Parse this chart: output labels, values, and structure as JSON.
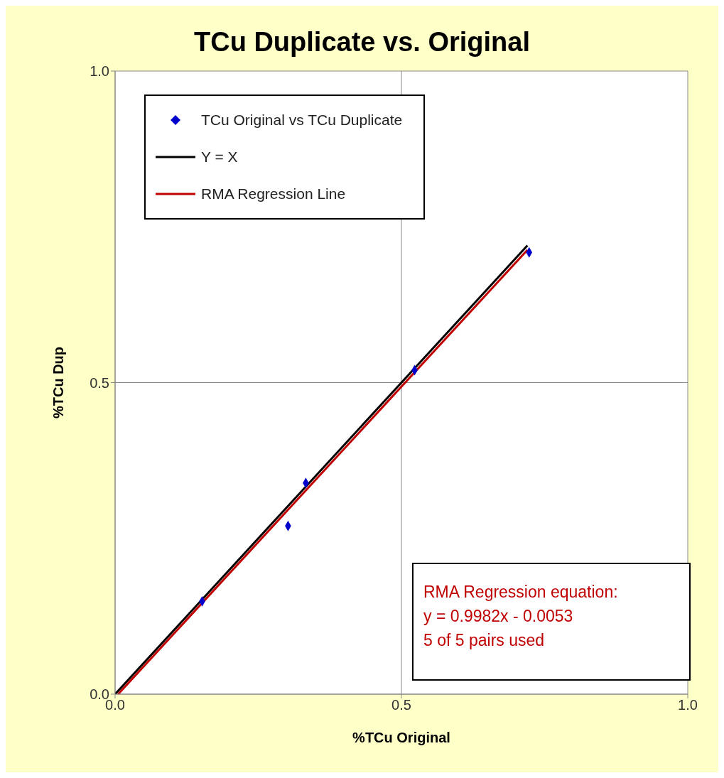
{
  "chart_data": {
    "type": "scatter",
    "title": "TCu Duplicate vs. Original",
    "xlabel": "%TCu Original",
    "ylabel": "%TCu Dup",
    "xlim": [
      0,
      1
    ],
    "ylim": [
      0,
      1
    ],
    "xticks": [
      {
        "value": 0,
        "label": "0.0"
      },
      {
        "value": 0.5,
        "label": "0.5"
      },
      {
        "value": 1,
        "label": "1.0"
      }
    ],
    "yticks": [
      {
        "value": 0,
        "label": "0.0"
      },
      {
        "value": 0.5,
        "label": "0.5"
      },
      {
        "value": 1,
        "label": "1.0"
      }
    ],
    "grid": true,
    "legend": "top left",
    "series": [
      {
        "name": "TCu Original vs TCu Duplicate",
        "color": "#0000cc",
        "marker": "diamond",
        "x": [
          0.152,
          0.302,
          0.333,
          0.523,
          0.723
        ],
        "values": [
          0.149,
          0.27,
          0.339,
          0.52,
          0.709
        ]
      },
      {
        "name": "Y = X",
        "type": "line",
        "color": "#000000",
        "marker": "none",
        "x": [
          0,
          0.72
        ],
        "values": [
          0,
          0.72
        ]
      },
      {
        "name": "RMA Regression Line",
        "type": "line",
        "color": "#c00000",
        "marker": "none",
        "x": [
          0.0053,
          0.72
        ],
        "values": [
          0,
          0.713
        ]
      }
    ],
    "annotations": [
      "RMA Regression equation:",
      "y = 0.9982x - 0.0053",
      "5 of 5 pairs used"
    ]
  }
}
